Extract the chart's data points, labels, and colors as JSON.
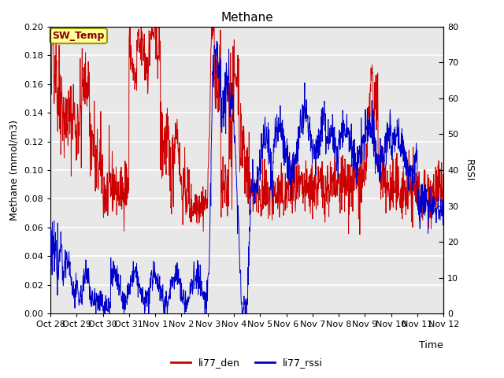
{
  "title": "Methane",
  "ylabel_left": "Methane (mmol/m3)",
  "ylabel_right": "RSSI",
  "xlabel": "Time",
  "ylim_left": [
    0.0,
    0.2
  ],
  "ylim_right": [
    0,
    80
  ],
  "yticks_left": [
    0.0,
    0.02,
    0.04,
    0.06,
    0.08,
    0.1,
    0.12,
    0.14,
    0.16,
    0.18,
    0.2
  ],
  "yticks_right": [
    0,
    10,
    20,
    30,
    40,
    50,
    60,
    70,
    80
  ],
  "bg_color": "#e8e8e8",
  "fig_bg": "#ffffff",
  "line_color_red": "#cc0000",
  "line_color_blue": "#0000cc",
  "legend_labels": [
    "li77_den",
    "li77_rssi"
  ],
  "sw_temp_label": "SW_Temp",
  "sw_temp_box_color": "#ffff99",
  "sw_temp_border_color": "#999900",
  "grid_color": "#ffffff",
  "tick_labels": [
    "Oct 28",
    "Oct 29",
    "Oct 30",
    "Oct 31",
    "Nov 1",
    "Nov 2",
    "Nov 3",
    "Nov 4",
    "Nov 5",
    "Nov 6",
    "Nov 7",
    "Nov 8",
    "Nov 9",
    "Nov 10",
    "Nov 11",
    "Nov 12"
  ],
  "num_points": 1400
}
